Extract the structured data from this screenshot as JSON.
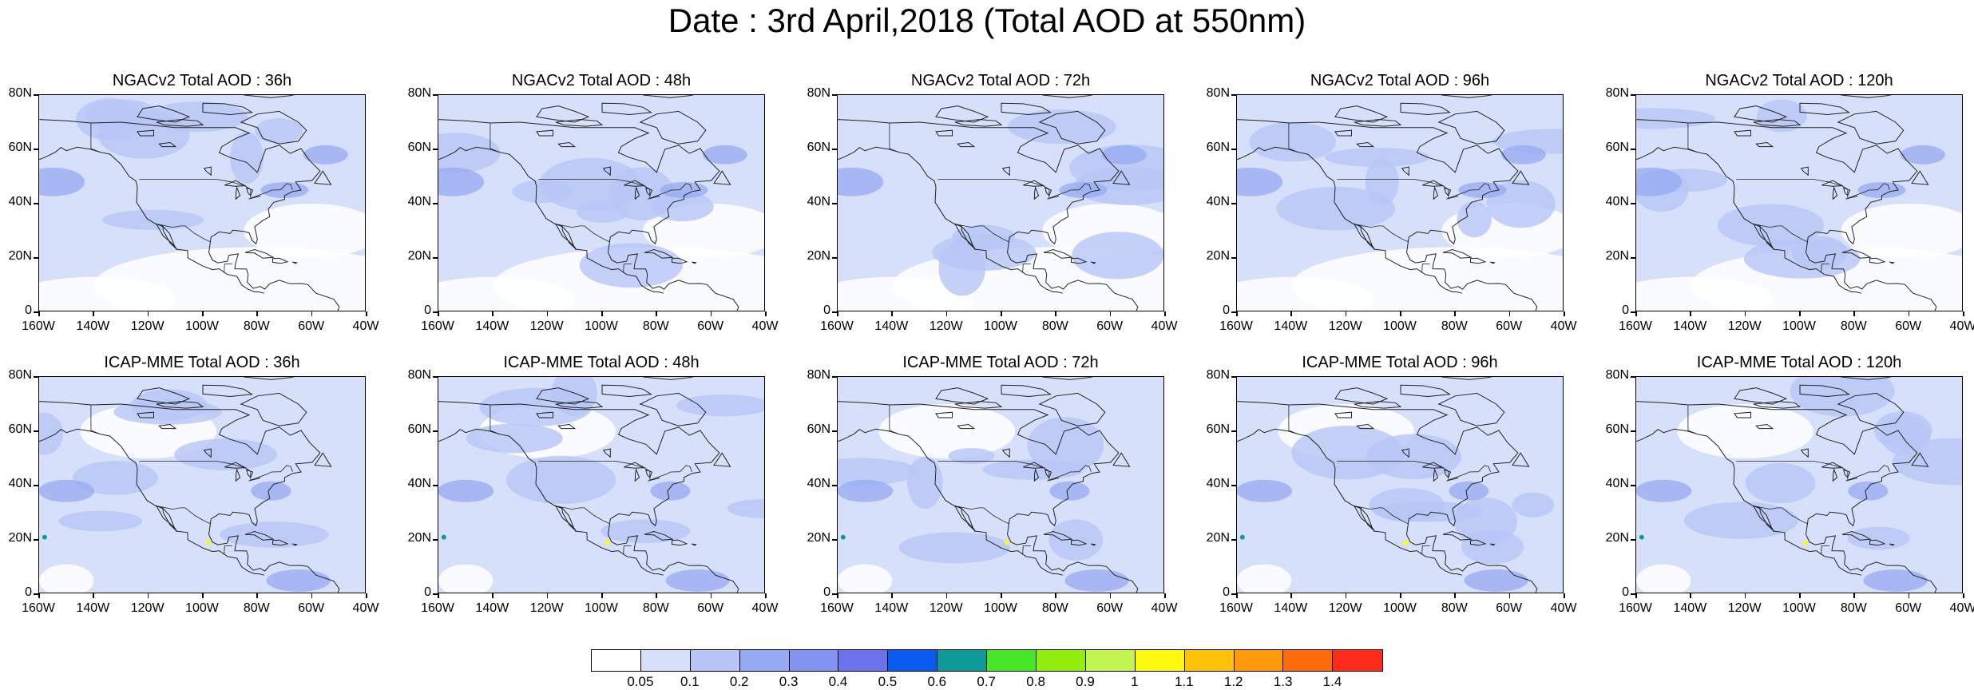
{
  "title": "Date : 3rd April,2018 (Total AOD at 550nm)",
  "panels": [
    {
      "title": "NGACv2 Total AOD : 36h"
    },
    {
      "title": "NGACv2 Total AOD : 48h"
    },
    {
      "title": "NGACv2 Total AOD : 72h"
    },
    {
      "title": "NGACv2 Total AOD : 96h"
    },
    {
      "title": "NGACv2 Total AOD : 120h"
    },
    {
      "title": "ICAP-MME Total AOD : 36h"
    },
    {
      "title": "ICAP-MME Total AOD : 48h"
    },
    {
      "title": "ICAP-MME Total AOD : 72h"
    },
    {
      "title": "ICAP-MME Total AOD : 96h"
    },
    {
      "title": "ICAP-MME Total AOD : 120h"
    }
  ],
  "axes": {
    "lat_labels": [
      "80N",
      "60N",
      "40N",
      "20N",
      "0"
    ],
    "lon_labels": [
      "160W",
      "140W",
      "120W",
      "100W",
      "80W",
      "60W",
      "40W"
    ]
  },
  "colorbar": {
    "labels": [
      "0.05",
      "0.1",
      "0.2",
      "0.3",
      "0.4",
      "0.5",
      "0.6",
      "0.7",
      "0.8",
      "0.9",
      "1",
      "1.1",
      "1.2",
      "1.3",
      "1.4"
    ],
    "colors": [
      "#ffffff",
      "#d7e0fa",
      "#b6c5f5",
      "#95aaf2",
      "#8393f0",
      "#6a73ea",
      "#0a5cf0",
      "#0e9a9a",
      "#48e629",
      "#92ee0d",
      "#c2f550",
      "#fff90f",
      "#ffc20a",
      "#ff9a0a",
      "#ff6b0a",
      "#ff2a1a"
    ]
  }
}
